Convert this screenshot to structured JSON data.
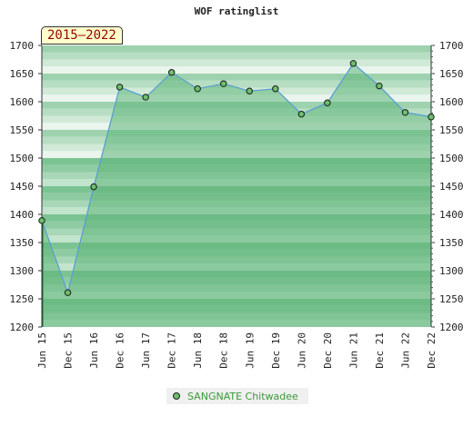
{
  "chart_data": {
    "type": "line",
    "title": "WOF ratinglist",
    "badge": "2015–2022",
    "categories": [
      "Jun 15",
      "Dec 15",
      "Jun 16",
      "Dec 16",
      "Jun 17",
      "Dec 17",
      "Jun 18",
      "Dec 18",
      "Jun 19",
      "Dec 19",
      "Jun 20",
      "Dec 20",
      "Jun 21",
      "Dec 21",
      "Jun 22",
      "Dec 22"
    ],
    "series": [
      {
        "name": "SANGNATE Chitwadee",
        "values": [
          1389,
          1261,
          1449,
          1626,
          1608,
          1652,
          1623,
          1632,
          1619,
          1623,
          1578,
          1598,
          1668,
          1628,
          1581,
          1573
        ]
      }
    ],
    "ylim": [
      1200,
      1700
    ],
    "yticks": [
      1200,
      1250,
      1300,
      1350,
      1400,
      1450,
      1500,
      1550,
      1600,
      1650,
      1700
    ],
    "grid": false,
    "legend_position": "bottom",
    "colors": {
      "line": "#5aa0d0",
      "fill": "#7dc495",
      "marker": "#6cbf6c",
      "band_light": "#f0f8f2",
      "band_dark": "#7cc393"
    }
  }
}
